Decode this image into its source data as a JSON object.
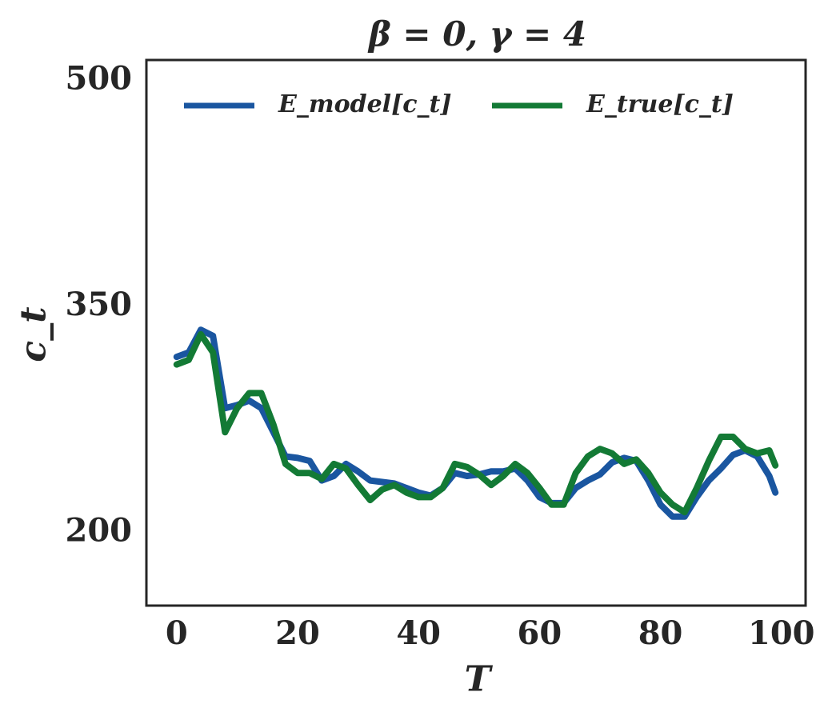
{
  "chart_data": {
    "type": "line",
    "title": "β = 0, γ = 4",
    "x_label": "T",
    "y_label": "c_t",
    "x": [
      0,
      2,
      4,
      6,
      8,
      10,
      12,
      14,
      16,
      18,
      20,
      22,
      24,
      26,
      28,
      30,
      32,
      34,
      36,
      38,
      40,
      42,
      44,
      46,
      48,
      50,
      52,
      54,
      56,
      58,
      60,
      62,
      64,
      66,
      68,
      70,
      72,
      74,
      76,
      78,
      80,
      82,
      84,
      86,
      88,
      90,
      92,
      94,
      96,
      98,
      99
    ],
    "series": [
      {
        "name": "E_model[c_t]",
        "color": "#1a56a0",
        "values": [
          317,
          320,
          335,
          331,
          283,
          285,
          288,
          283,
          267,
          251,
          250,
          248,
          235,
          238,
          246,
          241,
          235,
          234,
          233,
          230,
          227,
          225,
          230,
          240,
          238,
          239,
          241,
          241,
          243,
          235,
          224,
          220,
          220,
          230,
          235,
          239,
          247,
          250,
          248,
          235,
          219,
          211,
          211,
          224,
          235,
          243,
          252,
          255,
          251,
          238,
          227
        ]
      },
      {
        "name": "E_true[c_t]",
        "color": "#137a35",
        "values": [
          312,
          315,
          332,
          320,
          267,
          283,
          293,
          293,
          272,
          246,
          240,
          240,
          236,
          246,
          243,
          232,
          222,
          229,
          232,
          227,
          224,
          224,
          230,
          246,
          244,
          239,
          232,
          238,
          246,
          240,
          230,
          219,
          219,
          240,
          251,
          256,
          253,
          246,
          249,
          240,
          227,
          219,
          214,
          230,
          248,
          264,
          264,
          256,
          253,
          255,
          245
        ]
      }
    ],
    "xlim": [
      -5,
      104
    ],
    "ylim": [
      152,
      514
    ],
    "xticks": [
      0,
      20,
      40,
      60,
      80,
      100
    ],
    "yticks": [
      200,
      350,
      500
    ],
    "legend": "upper center"
  }
}
